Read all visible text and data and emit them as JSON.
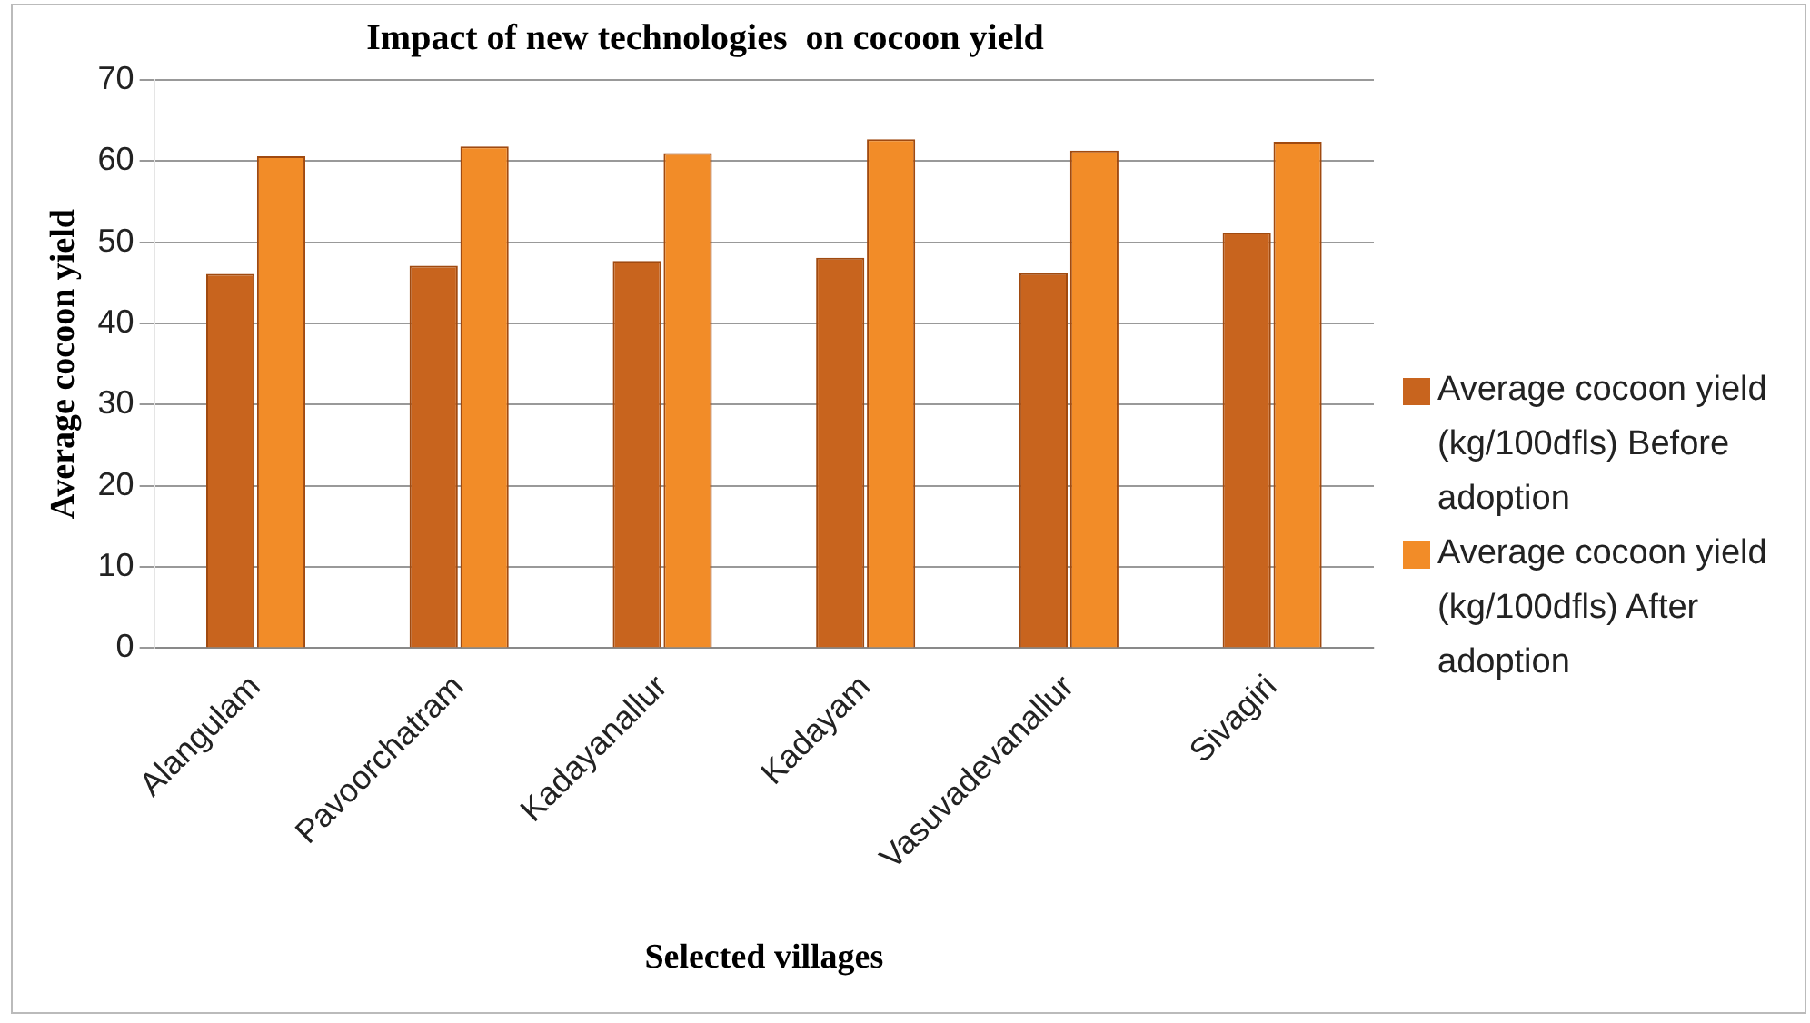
{
  "chart_data": {
    "type": "bar",
    "title": "Impact of new technologies  on cocoon yield",
    "xlabel": "Selected villages",
    "ylabel": "Average cocoon yield",
    "categories": [
      "Alangulam",
      "Pavoorchatram",
      "Kadayanallur",
      "Kadayam",
      "Vasuvadevanallur",
      "Sivagiri"
    ],
    "series": [
      {
        "name": "Average cocoon yield (kg/100dfls) Before adoption",
        "color": "#c8641e",
        "values": [
          46.1,
          47.1,
          47.7,
          48.1,
          46.2,
          51.2
        ]
      },
      {
        "name": "Average cocoon yield (kg/100dfls) After adoption",
        "color": "#f28c28",
        "values": [
          60.6,
          61.8,
          61.0,
          62.7,
          61.3,
          62.4
        ]
      }
    ],
    "ylim": [
      0,
      70
    ],
    "yticks": [
      0,
      10,
      20,
      30,
      40,
      50,
      60,
      70
    ],
    "grid": "y",
    "legend": "right"
  }
}
